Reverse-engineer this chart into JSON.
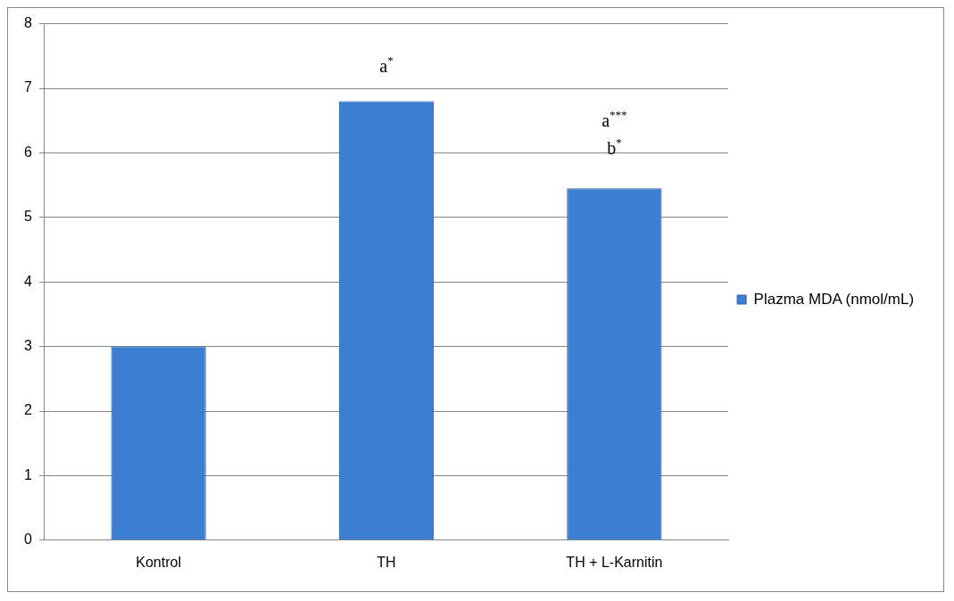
{
  "chart_data": {
    "type": "bar",
    "categories": [
      "Kontrol",
      "TH",
      "TH + L-Karnitin"
    ],
    "series": [
      {
        "name": "Plazma MDA (nmol/mL)",
        "color": "#3c7fd2",
        "values": [
          3.0,
          6.8,
          5.45
        ]
      }
    ],
    "ylim": [
      0,
      8
    ],
    "yticks": [
      0,
      1,
      2,
      3,
      4,
      5,
      6,
      7,
      8
    ],
    "grid": "y",
    "legend": "right",
    "annotations": [
      "a$^{*}$",
      "a$^{***}$",
      "b$^{*}$"
    ]
  }
}
